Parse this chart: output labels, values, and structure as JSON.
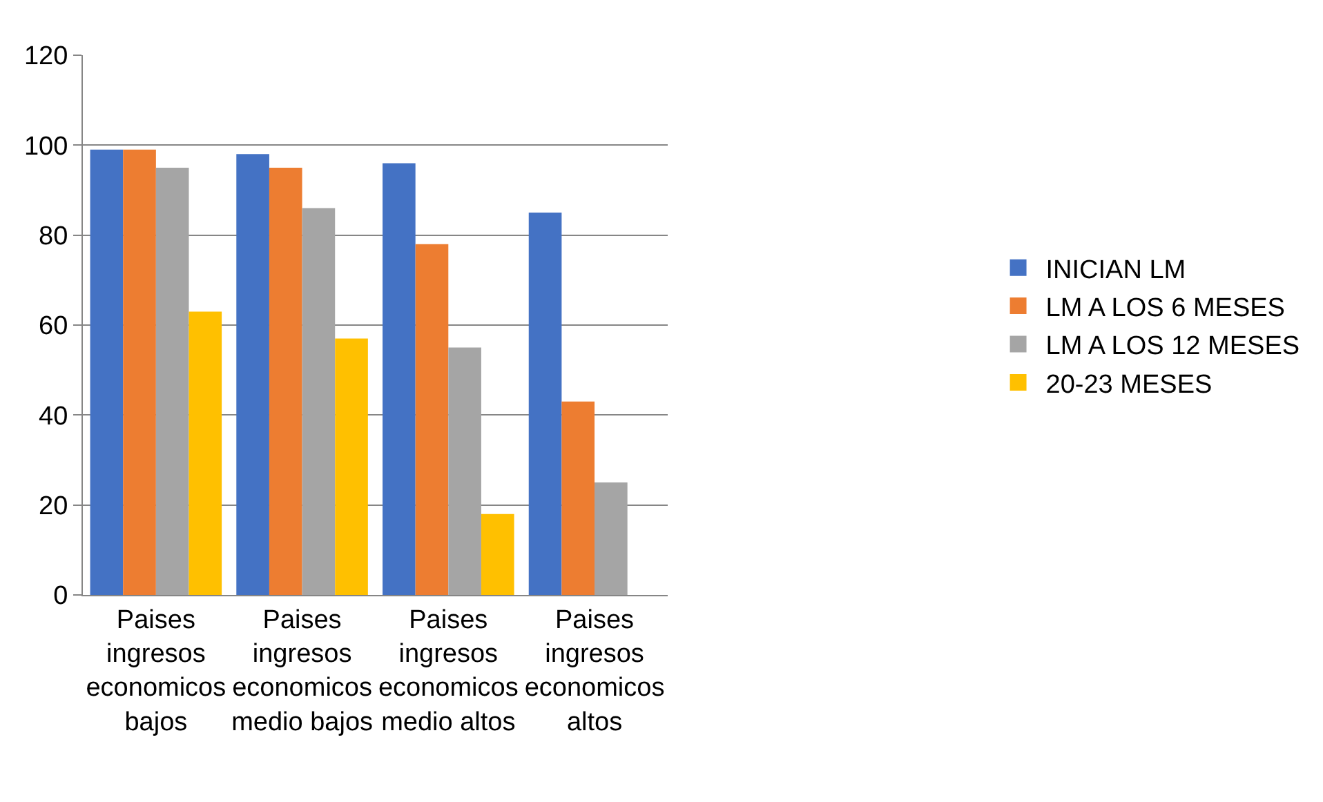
{
  "chart_data": {
    "type": "bar",
    "categories": [
      "Paises ingresos economicos bajos",
      "Paises ingresos economicos medio bajos",
      "Paises ingresos economicos medio altos",
      "Paises ingresos economicos altos"
    ],
    "series": [
      {
        "name": "INICIAN LM",
        "color": "#4472c4",
        "values": [
          99,
          98,
          96,
          85
        ]
      },
      {
        "name": "LM A LOS 6 MESES",
        "color": "#ed7d31",
        "values": [
          99,
          95,
          78,
          43
        ]
      },
      {
        "name": "LM A LOS 12 MESES",
        "color": "#a5a5a5",
        "values": [
          95,
          86,
          55,
          25
        ]
      },
      {
        "name": "20-23 MESES",
        "color": "#ffc000",
        "values": [
          63,
          57,
          18,
          null
        ]
      }
    ],
    "ylim": [
      0,
      120
    ],
    "yticks": [
      0,
      20,
      40,
      60,
      80,
      100,
      120
    ],
    "grid": "y",
    "legend": "right"
  }
}
